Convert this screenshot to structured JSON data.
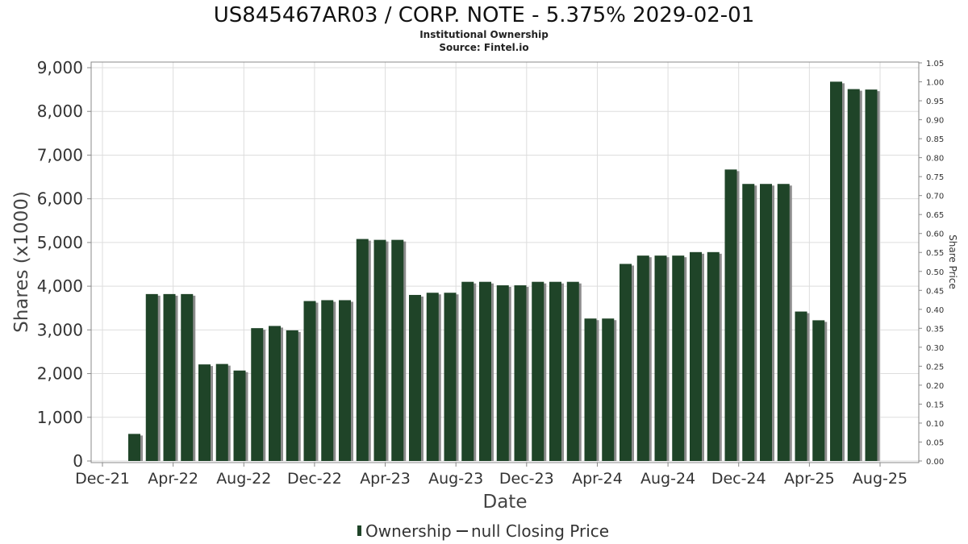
{
  "chart_data": {
    "type": "bar",
    "title": "US845467AR03 / CORP. NOTE - 5.375% 2029-02-01",
    "subtitle_lines": [
      "Institutional Ownership",
      "Source: Fintel.io"
    ],
    "xlabel": "Date",
    "ylabel": "Shares (x1000)",
    "y2label": "Share Price",
    "ylim": [
      0,
      9000
    ],
    "y_ticks": [
      0,
      1000,
      2000,
      3000,
      4000,
      5000,
      6000,
      7000,
      8000,
      9000
    ],
    "y_tick_labels": [
      "0",
      "1,000",
      "2,000",
      "3,000",
      "4,000",
      "5,000",
      "6,000",
      "7,000",
      "8,000",
      "9,000"
    ],
    "y2lim": [
      0,
      1.05
    ],
    "y2_tick_labels": [
      "0.00",
      "0.05",
      "0.10",
      "0.15",
      "0.20",
      "0.25",
      "0.30",
      "0.35",
      "0.40",
      "0.45",
      "0.50",
      "0.55",
      "0.60",
      "0.65",
      "0.70",
      "0.75",
      "0.80",
      "0.85",
      "0.90",
      "0.95",
      "1.00",
      "1.05"
    ],
    "x_tick_labels": [
      "Dec-21",
      "Apr-22",
      "Aug-22",
      "Dec-22",
      "Apr-23",
      "Aug-23",
      "Dec-23",
      "Apr-24",
      "Aug-24",
      "Dec-24",
      "Apr-25",
      "Aug-25"
    ],
    "grid": true,
    "legend": {
      "placement": "bottom",
      "items": [
        "Ownership",
        "null Closing Price"
      ]
    },
    "series": [
      {
        "name": "Ownership",
        "color": "#1f4428",
        "values": [
          620,
          3820,
          3820,
          3820,
          2210,
          2220,
          2070,
          3040,
          3090,
          2990,
          3660,
          3680,
          3680,
          5080,
          5060,
          5060,
          3800,
          3850,
          3850,
          4100,
          4100,
          4020,
          4020,
          4100,
          4100,
          4100,
          3260,
          3260,
          4510,
          4700,
          4700,
          4700,
          4780,
          4780,
          6670,
          6340,
          6340,
          6340,
          3420,
          3220,
          8680,
          8510,
          8500
        ]
      }
    ]
  }
}
